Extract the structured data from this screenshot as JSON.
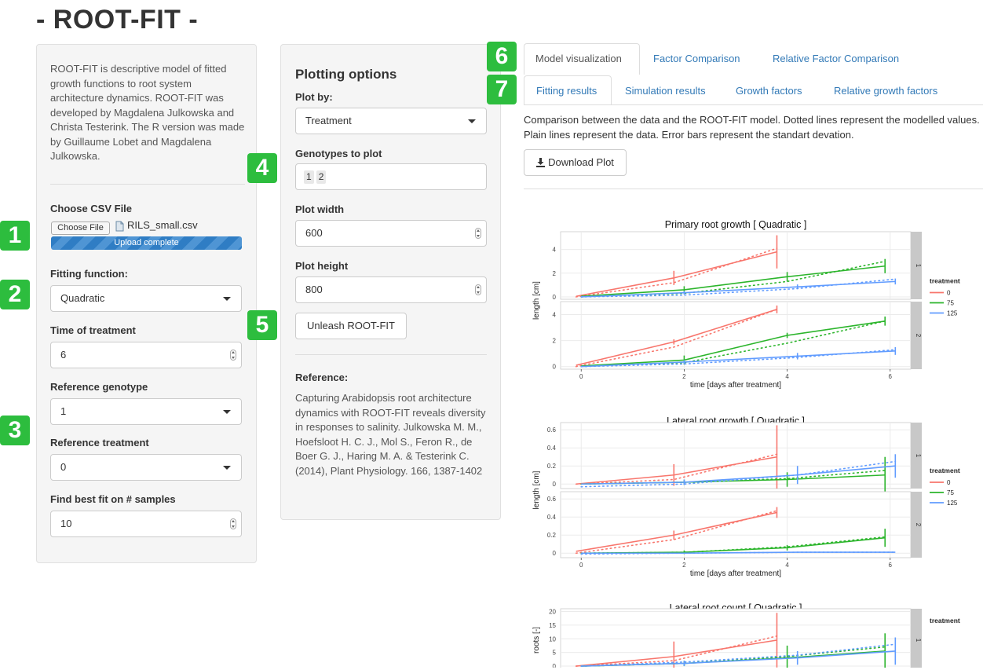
{
  "app_title": "- ROOT-FIT -",
  "description": "ROOT-FIT is descriptive model of fitted growth functions to root system architecture dynamics. ROOT-FIT was developed by Magdalena Julkowska and Christa Testerink. The R version was made by Guillaume Lobet and Magdalena Julkowska.",
  "sidebar": {
    "csv_label": "Choose CSV File",
    "choose_file_button": "Choose File",
    "file_name": "RILS_small.csv",
    "upload_status": "Upload complete",
    "fitting_label": "Fitting function:",
    "fitting_value": "Quadratic",
    "time_label": "Time of treatment",
    "time_value": "6",
    "ref_genotype_label": "Reference genotype",
    "ref_genotype_value": "1",
    "ref_treatment_label": "Reference treatment",
    "ref_treatment_value": "0",
    "best_fit_label": "Find best fit on # samples",
    "best_fit_value": "10"
  },
  "plotting": {
    "heading": "Plotting options",
    "plot_by_label": "Plot by:",
    "plot_by_value": "Treatment",
    "genotypes_label": "Genotypes to plot",
    "genotypes": [
      "1",
      "2"
    ],
    "width_label": "Plot width",
    "width_value": "600",
    "height_label": "Plot height",
    "height_value": "800",
    "unleash_button": "Unleash ROOT-FIT",
    "reference_heading": "Reference:",
    "reference_text": "Capturing Arabidopsis root architecture dynamics with ROOT-FIT reveals diversity in responses to salinity. Julkowska M. M., Hoefsloot H. C. J., Mol S., Feron R., de Boer G. J., Haring M. A. & Testerink C. (2014), Plant Physiology. 166, 1387-1402"
  },
  "badges": [
    "1",
    "2",
    "3",
    "4",
    "5",
    "6",
    "7"
  ],
  "tabs_main": [
    "Model visualization",
    "Factor Comparison",
    "Relative Factor Comparison"
  ],
  "tabs_sub": [
    "Fitting results",
    "Simulation results",
    "Growth factors",
    "Relative growth factors"
  ],
  "main_description": "Comparison between the data and the ROOT-FIT model. Dotted lines represent the modelled values. Plain lines represent the data. Error bars represent the standart devation.",
  "download_button": "Download Plot",
  "colors": {
    "t0": "#f8766d",
    "t75": "#2cb52c",
    "t125": "#619cff",
    "badge": "#2dbd3e",
    "link": "#337ab7"
  },
  "chart_data": [
    {
      "type": "line",
      "title": "Primary root growth [ Quadratic ]",
      "ylabel": "length [cm]",
      "xlabel": "time [days after treatment]",
      "xlim": [
        -0.4,
        6.4
      ],
      "x_ticks": [
        "0",
        "2",
        "4",
        "6"
      ],
      "legend_title": "treatment",
      "legend_entries": [
        "0",
        "75",
        "125"
      ],
      "panels": [
        {
          "strip": "1",
          "ylim": [
            -0.2,
            5.5
          ],
          "y_ticks": [
            0,
            2,
            4
          ],
          "series": [
            {
              "name": "0",
              "color": "#f8766d",
              "x": [
                -0.1,
                1.8,
                3.8
              ],
              "y": [
                0.05,
                1.6,
                3.8
              ],
              "fit": [
                [
                  -0.1,
                  0.0
                ],
                [
                  1.8,
                  1.2
                ],
                [
                  3.8,
                  4.1
                ]
              ],
              "err": [
                [
                  1.8,
                  0.6
                ],
                [
                  3.8,
                  1.4
                ]
              ]
            },
            {
              "name": "75",
              "color": "#2cb52c",
              "x": [
                0.0,
                2.0,
                4.0,
                5.9
              ],
              "y": [
                0.05,
                0.6,
                1.7,
                2.6
              ],
              "fit": [
                [
                  0.0,
                  0.0
                ],
                [
                  2.0,
                  0.3
                ],
                [
                  4.0,
                  1.3
                ],
                [
                  5.9,
                  3.0
                ]
              ],
              "err": [
                [
                  2.0,
                  0.3
                ],
                [
                  4.0,
                  0.4
                ],
                [
                  5.9,
                  0.6
                ]
              ]
            },
            {
              "name": "125",
              "color": "#619cff",
              "x": [
                0.0,
                2.0,
                4.2,
                6.1
              ],
              "y": [
                0.0,
                0.35,
                0.85,
                1.3
              ],
              "fit": [
                [
                  0.0,
                  0.0
                ],
                [
                  2.0,
                  0.15
                ],
                [
                  4.2,
                  0.7
                ],
                [
                  6.1,
                  1.5
                ]
              ],
              "err": [
                [
                  2.0,
                  0.15
                ],
                [
                  4.2,
                  0.2
                ],
                [
                  6.1,
                  0.25
                ]
              ]
            }
          ]
        },
        {
          "strip": "2",
          "ylim": [
            -0.2,
            5.0
          ],
          "y_ticks": [
            0,
            2,
            4
          ],
          "series": [
            {
              "name": "0",
              "color": "#f8766d",
              "x": [
                -0.1,
                1.8,
                3.8
              ],
              "y": [
                0.1,
                1.9,
                4.4
              ],
              "fit": [
                [
                  -0.1,
                  0.0
                ],
                [
                  1.8,
                  1.5
                ],
                [
                  3.8,
                  4.4
                ]
              ],
              "err": [
                [
                  1.8,
                  0.2
                ],
                [
                  3.8,
                  0.3
                ]
              ]
            },
            {
              "name": "75",
              "color": "#2cb52c",
              "x": [
                0.0,
                2.0,
                4.0,
                5.9
              ],
              "y": [
                0.05,
                0.5,
                2.4,
                3.5
              ],
              "fit": [
                [
                  0.0,
                  0.0
                ],
                [
                  2.0,
                  0.3
                ],
                [
                  4.0,
                  1.8
                ],
                [
                  5.9,
                  3.5
                ]
              ],
              "err": [
                [
                  2.0,
                  0.35
                ],
                [
                  4.0,
                  0.2
                ],
                [
                  5.9,
                  0.35
                ]
              ]
            },
            {
              "name": "125",
              "color": "#619cff",
              "x": [
                0.0,
                2.0,
                4.2,
                6.1
              ],
              "y": [
                0.0,
                0.35,
                0.8,
                1.2
              ],
              "fit": [
                [
                  0.0,
                  0.0
                ],
                [
                  2.0,
                  0.2
                ],
                [
                  4.2,
                  0.7
                ],
                [
                  6.1,
                  1.3
                ]
              ],
              "err": [
                [
                  2.0,
                  0.15
                ],
                [
                  4.2,
                  0.25
                ],
                [
                  6.1,
                  0.3
                ]
              ]
            }
          ]
        }
      ]
    },
    {
      "type": "line",
      "title": "Lateral root growth [ Quadratic ]",
      "ylabel": "length [cm]",
      "xlabel": "time [days after treatment]",
      "xlim": [
        -0.4,
        6.4
      ],
      "x_ticks": [
        "0",
        "2",
        "4",
        "6"
      ],
      "legend_title": "treatment",
      "legend_entries": [
        "0",
        "75",
        "125"
      ],
      "panels": [
        {
          "strip": "1",
          "ylim": [
            -0.05,
            0.68
          ],
          "y_ticks": [
            0.0,
            0.2,
            0.4,
            0.6
          ],
          "series": [
            {
              "name": "0",
              "color": "#f8766d",
              "x": [
                -0.1,
                1.8,
                3.8
              ],
              "y": [
                0.0,
                0.1,
                0.3
              ],
              "fit": [
                [
                  -0.1,
                  0.0
                ],
                [
                  1.8,
                  0.05
                ],
                [
                  3.8,
                  0.33
                ]
              ],
              "err": [
                [
                  1.8,
                  0.12
                ],
                [
                  3.8,
                  0.35
                ]
              ]
            },
            {
              "name": "75",
              "color": "#2cb52c",
              "x": [
                0.0,
                2.0,
                4.0,
                5.9
              ],
              "y": [
                0.0,
                0.02,
                0.05,
                0.1
              ],
              "fit": [
                [
                  0.0,
                  0.0
                ],
                [
                  2.0,
                  0.02
                ],
                [
                  4.0,
                  0.06
                ],
                [
                  5.9,
                  0.15
                ]
              ],
              "err": [
                [
                  2.0,
                  0.03
                ],
                [
                  4.0,
                  0.08
                ],
                [
                  5.9,
                  0.2
                ]
              ]
            },
            {
              "name": "125",
              "color": "#619cff",
              "x": [
                0.0,
                2.0,
                4.2,
                6.1
              ],
              "y": [
                0.0,
                0.02,
                0.1,
                0.2
              ],
              "fit": [
                [
                  0.0,
                  -0.03
                ],
                [
                  2.0,
                  0.0
                ],
                [
                  4.2,
                  0.1
                ],
                [
                  6.1,
                  0.25
                ]
              ],
              "err": [
                [
                  2.0,
                  0.03
                ],
                [
                  4.2,
                  0.1
                ],
                [
                  6.1,
                  0.13
                ]
              ]
            }
          ]
        },
        {
          "strip": "2",
          "ylim": [
            -0.05,
            0.68
          ],
          "y_ticks": [
            0.0,
            0.2,
            0.4,
            0.6
          ],
          "series": [
            {
              "name": "0",
              "color": "#f8766d",
              "x": [
                -0.1,
                1.8,
                3.8
              ],
              "y": [
                0.02,
                0.2,
                0.45
              ],
              "fit": [
                [
                  -0.1,
                  0.0
                ],
                [
                  1.8,
                  0.15
                ],
                [
                  3.8,
                  0.47
                ]
              ],
              "err": [
                [
                  1.8,
                  0.05
                ],
                [
                  3.8,
                  0.06
                ]
              ]
            },
            {
              "name": "75",
              "color": "#2cb52c",
              "x": [
                0.0,
                2.0,
                4.0,
                5.9
              ],
              "y": [
                0.0,
                0.01,
                0.06,
                0.17
              ],
              "fit": [
                [
                  0.0,
                  0.0
                ],
                [
                  2.0,
                  0.01
                ],
                [
                  4.0,
                  0.07
                ],
                [
                  5.9,
                  0.18
                ]
              ],
              "err": [
                [
                  2.0,
                  0.02
                ],
                [
                  4.0,
                  0.03
                ],
                [
                  5.9,
                  0.1
                ]
              ]
            },
            {
              "name": "125",
              "color": "#619cff",
              "x": [
                0.0,
                2.0,
                4.2,
                6.1
              ],
              "y": [
                0.0,
                0.0,
                0.01,
                0.01
              ],
              "fit": [
                [
                  0.0,
                  -0.01
                ],
                [
                  2.0,
                  0.0
                ],
                [
                  4.2,
                  0.01
                ],
                [
                  6.1,
                  0.01
                ]
              ],
              "err": []
            }
          ]
        }
      ]
    },
    {
      "type": "line",
      "title": "Lateral root count [ Quadratic ]",
      "ylabel": "roots [-]",
      "xlabel": "",
      "xlim": [
        -0.4,
        6.4
      ],
      "x_ticks": [],
      "legend_title": "treatment",
      "legend_entries": [],
      "panels": [
        {
          "strip": "1",
          "ylim": [
            -2,
            21
          ],
          "y_ticks": [
            0,
            5,
            10,
            15,
            20
          ],
          "series": [
            {
              "name": "0",
              "color": "#f8766d",
              "x": [
                -0.1,
                1.8,
                3.8
              ],
              "y": [
                0.0,
                3.5,
                9.5
              ],
              "fit": [
                [
                  -0.1,
                  0.0
                ],
                [
                  1.8,
                  2.0
                ],
                [
                  3.8,
                  11.0
                ]
              ],
              "err": [
                [
                  1.8,
                  5.5
                ],
                [
                  3.8,
                  10.0
                ]
              ]
            },
            {
              "name": "75",
              "color": "#2cb52c",
              "x": [
                0.0,
                2.0,
                4.0,
                5.9
              ],
              "y": [
                0.0,
                1.0,
                3.0,
                5.5
              ],
              "fit": [
                [
                  0.0,
                  0.0
                ],
                [
                  2.0,
                  1.0
                ],
                [
                  4.0,
                  3.5
                ],
                [
                  5.9,
                  7.0
                ]
              ],
              "err": [
                [
                  2.0,
                  1.0
                ],
                [
                  4.0,
                  4.5
                ],
                [
                  5.9,
                  6.5
                ]
              ]
            },
            {
              "name": "125",
              "color": "#619cff",
              "x": [
                0.0,
                2.0,
                4.2,
                6.1
              ],
              "y": [
                0.0,
                1.0,
                3.0,
                5.5
              ],
              "fit": [
                [
                  0.0,
                  0.0
                ],
                [
                  2.0,
                  1.5
                ],
                [
                  4.2,
                  4.0
                ],
                [
                  6.1,
                  8.0
                ]
              ],
              "err": [
                [
                  2.0,
                  1.0
                ],
                [
                  4.2,
                  2.5
                ],
                [
                  6.1,
                  5.0
                ]
              ]
            }
          ]
        }
      ]
    }
  ]
}
